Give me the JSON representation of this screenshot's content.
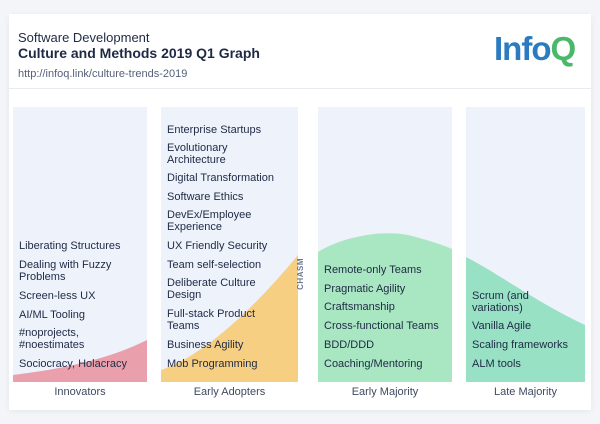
{
  "header": {
    "subtitle": "Software Development",
    "title": "Culture and Methods 2019 Q1 Graph",
    "url": "http://infoq.link/culture-trends-2019"
  },
  "logo": {
    "part1": "Info",
    "part2": "Q"
  },
  "chasm_label": "CHASM",
  "colors": {
    "innovators": "#e9a0ac",
    "early_adopters": "#f7cf83",
    "early_majority": "#a9e7c3",
    "late_majority": "#98e1c5",
    "column_bg": "#eef2fb"
  },
  "columns": {
    "innovators": {
      "label": "Innovators",
      "items": [
        "Liberating Structures",
        "Dealing with Fuzzy Problems",
        "Screen-less UX",
        "AI/ML Tooling",
        "#noprojects, #noestimates",
        "Sociocracy, Holacracy"
      ]
    },
    "early_adopters": {
      "label": "Early Adopters",
      "items": [
        "Enterprise Startups",
        "Evolutionary Architecture",
        "Digital Transformation",
        "Software Ethics",
        "DevEx/Employee Experience",
        "UX Friendly Security",
        "Team self-selection",
        "Deliberate Culture Design",
        "Full-stack Product Teams",
        "Business Agility",
        "Mob Programming"
      ]
    },
    "early_majority": {
      "label": "Early Majority",
      "items": [
        "Remote-only Teams",
        "Pragmatic Agility",
        "Craftsmanship",
        "Cross-functional Teams",
        "BDD/DDD",
        "Coaching/Mentoring"
      ]
    },
    "late_majority": {
      "label": "Late Majority",
      "items": [
        "Scrum (and variations)",
        "Vanilla Agile",
        "Scaling frameworks",
        "ALM tools"
      ]
    }
  }
}
